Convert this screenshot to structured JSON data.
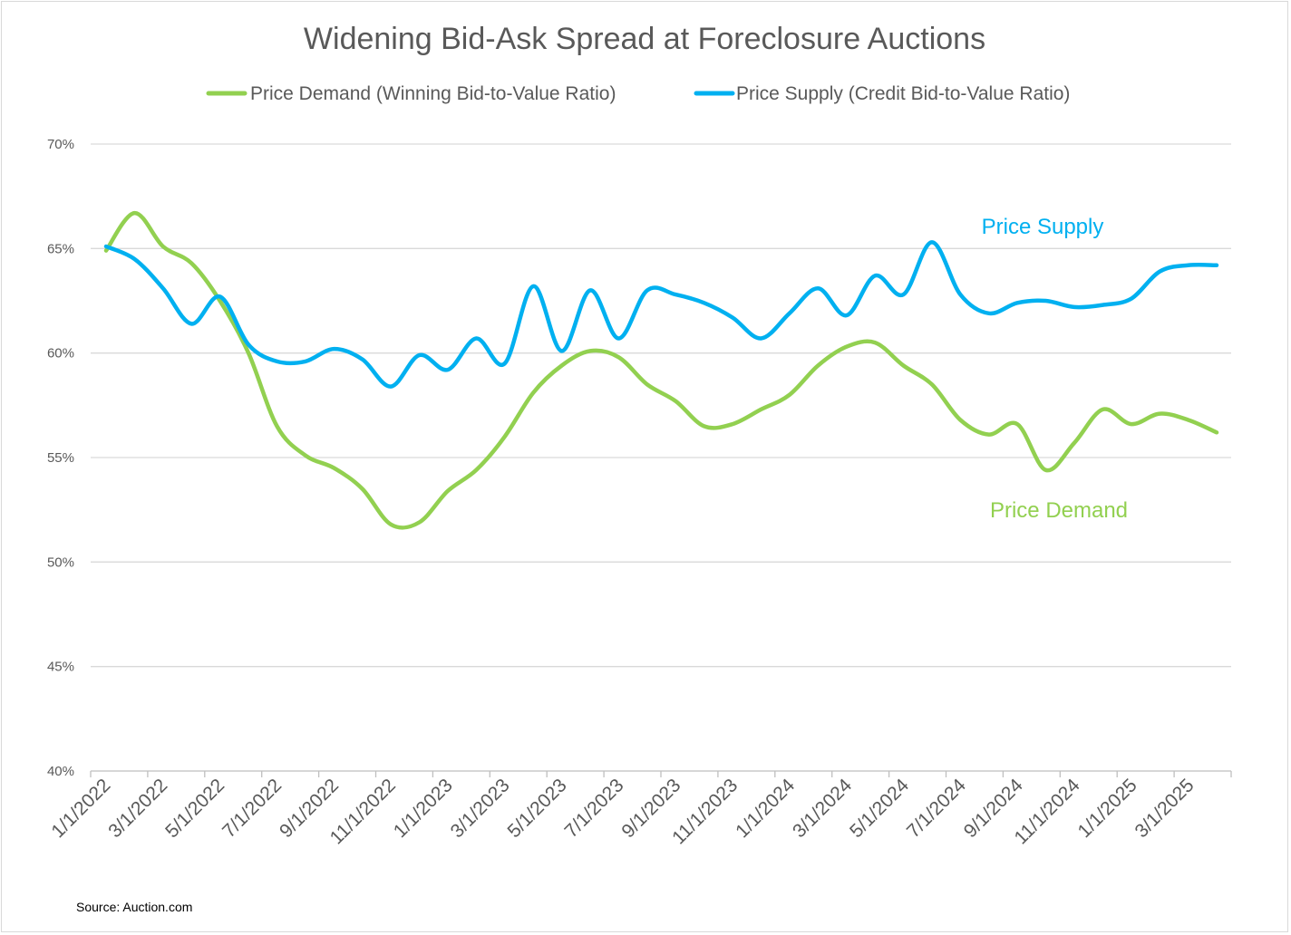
{
  "chart_data": {
    "type": "line",
    "title": "Widening Bid-Ask Spread at Foreclosure Auctions",
    "xlabel": "",
    "ylabel": "",
    "ylim": [
      0.4,
      0.7
    ],
    "yticks": [
      "40%",
      "45%",
      "50%",
      "55%",
      "60%",
      "65%",
      "70%"
    ],
    "x_tick_labels": [
      "1/1/2022",
      "3/1/2022",
      "5/1/2022",
      "7/1/2022",
      "9/1/2022",
      "11/1/2022",
      "1/1/2023",
      "3/1/2023",
      "5/1/2023",
      "7/1/2023",
      "9/1/2023",
      "11/1/2023",
      "1/1/2024",
      "3/1/2024",
      "5/1/2024",
      "7/1/2024",
      "9/1/2024",
      "11/1/2024",
      "1/1/2025",
      "3/1/2025"
    ],
    "x": [
      "2022-01",
      "2022-02",
      "2022-03",
      "2022-04",
      "2022-05",
      "2022-06",
      "2022-07",
      "2022-08",
      "2022-09",
      "2022-10",
      "2022-11",
      "2022-12",
      "2023-01",
      "2023-02",
      "2023-03",
      "2023-04",
      "2023-05",
      "2023-06",
      "2023-07",
      "2023-08",
      "2023-09",
      "2023-10",
      "2023-11",
      "2023-12",
      "2024-01",
      "2024-02",
      "2024-03",
      "2024-04",
      "2024-05",
      "2024-06",
      "2024-07",
      "2024-08",
      "2024-09",
      "2024-10",
      "2024-11",
      "2024-12",
      "2025-01",
      "2025-02",
      "2025-03",
      "2025-04"
    ],
    "series": [
      {
        "name": "Price Demand (Winning Bid-to-Value Ratio)",
        "color": "#92d050",
        "values": [
          0.649,
          0.667,
          0.651,
          0.643,
          0.625,
          0.6,
          0.565,
          0.551,
          0.545,
          0.535,
          0.518,
          0.519,
          0.534,
          0.544,
          0.56,
          0.581,
          0.594,
          0.601,
          0.598,
          0.585,
          0.577,
          0.565,
          0.566,
          0.573,
          0.58,
          0.594,
          0.603,
          0.605,
          0.594,
          0.585,
          0.568,
          0.561,
          0.566,
          0.544,
          0.557,
          0.573,
          0.566,
          0.571,
          0.568,
          0.562
        ]
      },
      {
        "name": "Price Supply (Credit Bid-to-Value Ratio)",
        "color": "#00b0f0",
        "values": [
          0.651,
          0.645,
          0.631,
          0.614,
          0.627,
          0.604,
          0.596,
          0.596,
          0.602,
          0.597,
          0.584,
          0.599,
          0.592,
          0.607,
          0.595,
          0.632,
          0.601,
          0.63,
          0.607,
          0.63,
          0.628,
          0.624,
          0.617,
          0.607,
          0.619,
          0.631,
          0.618,
          0.637,
          0.628,
          0.653,
          0.628,
          0.619,
          0.624,
          0.625,
          0.622,
          0.623,
          0.626,
          0.639,
          0.642,
          0.642
        ]
      }
    ],
    "annotations": [
      {
        "text": "Price Supply",
        "color": "#00b0f0"
      },
      {
        "text": "Price Demand",
        "color": "#92d050"
      }
    ],
    "legend": "top",
    "grid": true
  },
  "source": "Source: Auction.com"
}
